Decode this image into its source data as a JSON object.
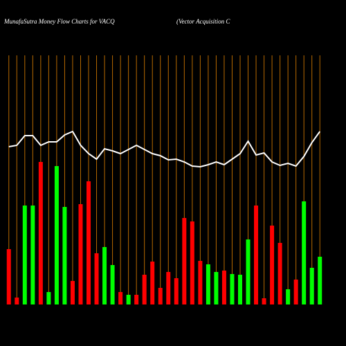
{
  "chart_data": {
    "type": "bar",
    "title": "MunafaSutra  Money Flow  Charts for VACQ",
    "subtitle": "(Vector Acquisition  C",
    "ylim": [
      0,
      360
    ],
    "values": [
      80,
      10,
      143,
      143,
      206,
      18,
      200,
      141,
      34,
      145,
      178,
      74,
      83,
      57,
      18,
      14,
      14,
      43,
      62,
      24,
      47,
      38,
      125,
      120,
      63,
      58,
      47,
      49,
      44,
      43,
      94,
      143,
      9,
      114,
      89,
      22,
      36,
      149,
      53,
      69
    ],
    "colors": [
      "#ff0000",
      "#ff0000",
      "#00ff00",
      "#00ff00",
      "#ff0000",
      "#00ff00",
      "#00ff00",
      "#00ff00",
      "#ff0000",
      "#ff0000",
      "#ff0000",
      "#ff0000",
      "#00ff00",
      "#00ff00",
      "#ff0000",
      "#00ff00",
      "#ff0000",
      "#ff0000",
      "#ff0000",
      "#ff0000",
      "#ff0000",
      "#ff0000",
      "#ff0000",
      "#ff0000",
      "#ff0000",
      "#00ff00",
      "#00ff00",
      "#ff0000",
      "#00ff00",
      "#00ff00",
      "#00ff00",
      "#ff0000",
      "#ff0000",
      "#ff0000",
      "#ff0000",
      "#00ff00",
      "#ff0000",
      "#00ff00",
      "#00ff00",
      "#00ff00"
    ],
    "line": {
      "color": "#ffffff",
      "values": [
        228,
        230,
        244,
        244,
        230,
        235,
        235,
        245,
        250,
        230,
        218,
        210,
        225,
        222,
        218,
        224,
        230,
        224,
        218,
        215,
        209,
        210,
        206,
        200,
        199,
        202,
        206,
        202,
        210,
        218,
        236,
        216,
        219,
        206,
        201,
        204,
        200,
        214,
        234,
        250
      ]
    },
    "gridline_color": "#b86a00"
  }
}
